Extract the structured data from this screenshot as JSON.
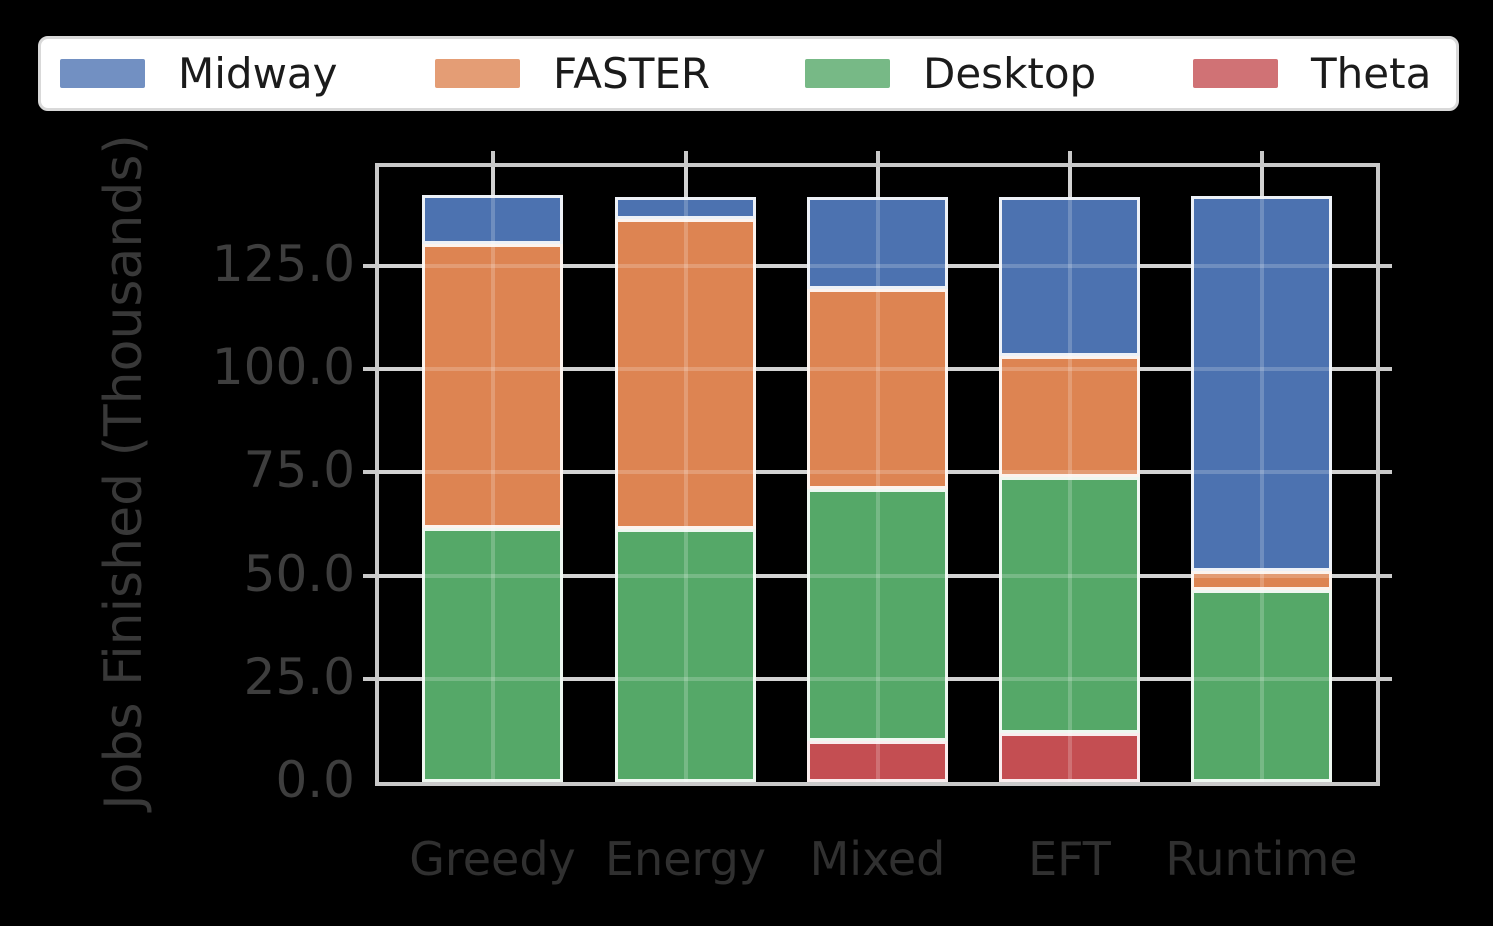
{
  "figure": {
    "background": "#000000",
    "plot_background": "transparent",
    "grid_color": "#c9c9c9",
    "bar_edge_color": "#ffffff"
  },
  "legend": {
    "position": "top",
    "items": [
      {
        "label": "Midway",
        "swatch_color": "#7290C2"
      },
      {
        "label": "FASTER",
        "swatch_color": "#E49D75"
      },
      {
        "label": "Desktop",
        "swatch_color": "#77B986"
      },
      {
        "label": "Theta",
        "swatch_color": "#D07275"
      }
    ]
  },
  "y_axis": {
    "label": "Jobs Finished (Thousands)",
    "tick_labels": [
      "125.0",
      "100.0",
      "75.0",
      "50.0",
      "25.0",
      "0.0"
    ],
    "tick_values": [
      125,
      100,
      75,
      50,
      25,
      0
    ]
  },
  "x_axis": {
    "categories": [
      "Greedy",
      "Energy",
      "Mixed",
      "EFT",
      "Runtime"
    ]
  },
  "chart_data": {
    "type": "bar",
    "stacked": true,
    "title": "",
    "xlabel": "",
    "ylabel": "Jobs Finished (Thousands)",
    "categories": [
      "Greedy",
      "Energy",
      "Mixed",
      "EFT",
      "Runtime"
    ],
    "series": [
      {
        "name": "Theta",
        "color": "#C44E52",
        "values": [
          0,
          0,
          9.9,
          11.9,
          0
        ]
      },
      {
        "name": "Desktop",
        "color": "#55A868",
        "values": [
          61.5,
          61.3,
          61.0,
          62.1,
          46.6
        ]
      },
      {
        "name": "FASTER",
        "color": "#DD8452",
        "values": [
          68.7,
          75.2,
          48.4,
          29.4,
          4.6
        ]
      },
      {
        "name": "Midway",
        "color": "#4C72B0",
        "values": [
          11.9,
          5.4,
          22.3,
          38.5,
          90.8
        ]
      }
    ],
    "stack_order_bottom_to_top": [
      "Theta",
      "Desktop",
      "FASTER",
      "Midway"
    ],
    "totals": [
      142.1,
      141.9,
      141.6,
      141.9,
      142.0
    ],
    "ylim": [
      0,
      150
    ],
    "ytick_interval": 25,
    "grid": true,
    "legend_position": "top",
    "legend_order": [
      "Midway",
      "FASTER",
      "Desktop",
      "Theta"
    ]
  }
}
